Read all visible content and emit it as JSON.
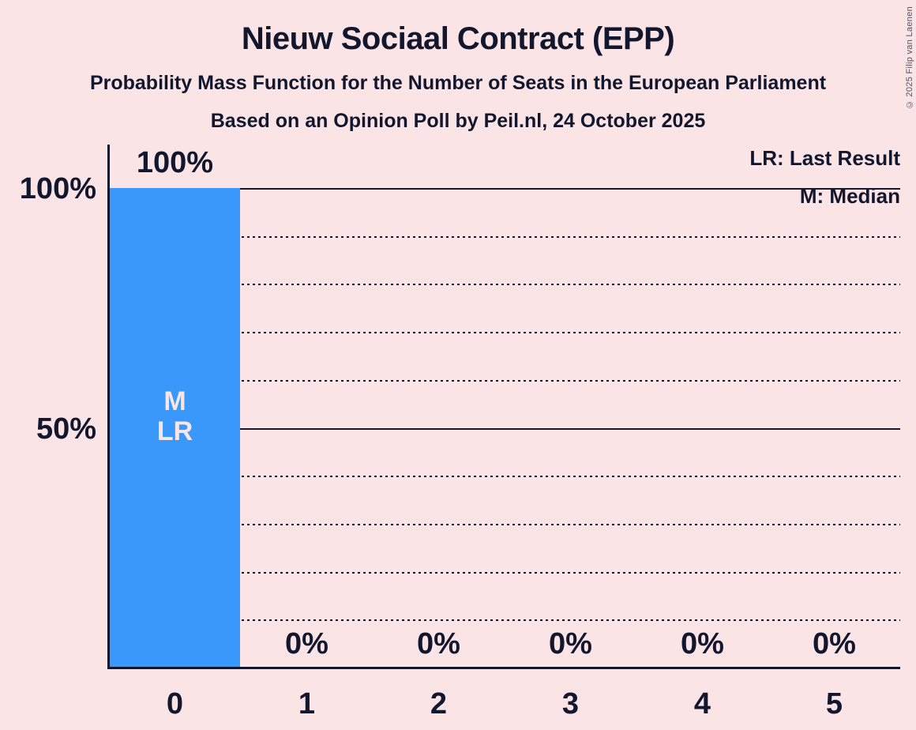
{
  "copyright": "© 2025 Filip van Laenen",
  "legend": {
    "lr": "LR: Last Result",
    "m": "M: Median"
  },
  "colors": {
    "background": "#fbe4e6",
    "bar": "#3998f9",
    "text": "#13172e",
    "bar_annotation_text": "#fbe4e6"
  },
  "chart_data": {
    "type": "bar",
    "title": "Nieuw Sociaal Contract (EPP)",
    "subtitle": "Probability Mass Function for the Number of Seats in the European Parliament",
    "poll_info": "Based on an Opinion Poll by Peil.nl, 24 October 2025",
    "categories": [
      "0",
      "1",
      "2",
      "3",
      "4",
      "5"
    ],
    "values": [
      100,
      0,
      0,
      0,
      0,
      0
    ],
    "value_labels": [
      "100%",
      "0%",
      "0%",
      "0%",
      "0%",
      "0%"
    ],
    "bar_annotations": [
      [
        "M",
        "LR"
      ],
      [],
      [],
      [],
      [],
      []
    ],
    "y_axis_ticks": [
      {
        "pct": 100,
        "label": "100%"
      },
      {
        "pct": 50,
        "label": "50%"
      }
    ],
    "gridlines": {
      "solid": [
        100,
        50
      ],
      "dotted": [
        90,
        80,
        70,
        60,
        40,
        30,
        20,
        10
      ]
    },
    "ylim": [
      0,
      100
    ],
    "grid": true,
    "legend_position": "top-right"
  }
}
